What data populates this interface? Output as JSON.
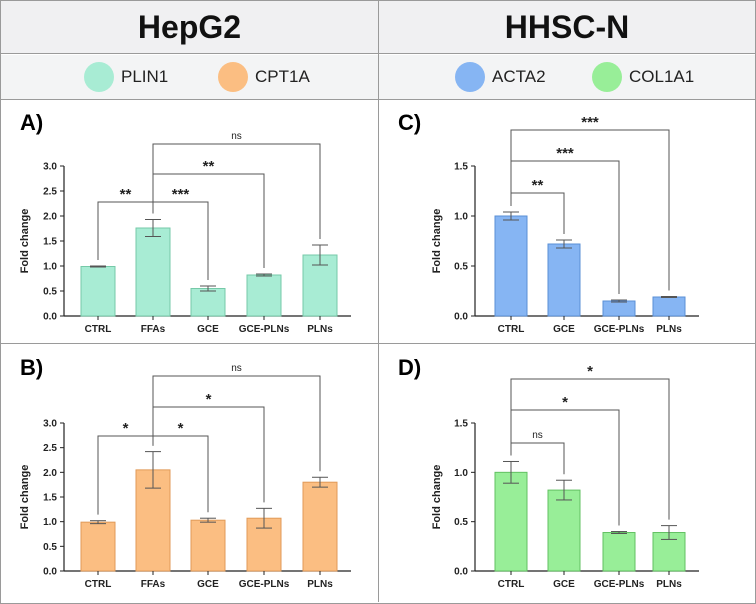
{
  "headers": {
    "left": "HepG2",
    "right": "HHSC-N"
  },
  "legend_left": [
    {
      "label": "PLIN1",
      "color": "#a8ecd4"
    },
    {
      "label": "CPT1A",
      "color": "#fbbe82"
    }
  ],
  "legend_right": [
    {
      "label": "ACTA2",
      "color": "#86b5f3"
    },
    {
      "label": "COL1A1",
      "color": "#98ee98"
    }
  ],
  "chart_data": [
    {
      "id": "A",
      "panel_label": "A)",
      "type": "bar",
      "bar_color": "#a8ecd4",
      "bar_stroke": "#76c9a8",
      "categories": [
        "CTRL",
        "FFAs",
        "GCE",
        "GCE-PLNs",
        "PLNs"
      ],
      "values": [
        0.99,
        1.76,
        0.55,
        0.82,
        1.22
      ],
      "errors": [
        0.01,
        0.17,
        0.05,
        0.02,
        0.2
      ],
      "ylabel": "Fold change",
      "ylim": [
        0,
        3.0
      ],
      "yticks": [
        "0.0",
        "0.5",
        "1.0",
        "1.5",
        "2.0",
        "2.5",
        "3.0"
      ],
      "brackets": [
        {
          "from": 0,
          "to": 1,
          "label": "**"
        },
        {
          "from": 1,
          "to": 2,
          "label": "***"
        },
        {
          "from": 1,
          "to": 3,
          "label": "**"
        },
        {
          "from": 1,
          "to": 4,
          "label": "ns"
        }
      ]
    },
    {
      "id": "B",
      "panel_label": "B)",
      "type": "bar",
      "bar_color": "#fbbe82",
      "bar_stroke": "#e09a58",
      "categories": [
        "CTRL",
        "FFAs",
        "GCE",
        "GCE-PLNs",
        "PLNs"
      ],
      "values": [
        0.99,
        2.05,
        1.03,
        1.07,
        1.8
      ],
      "errors": [
        0.03,
        0.37,
        0.04,
        0.2,
        0.1
      ],
      "ylabel": "Fold change",
      "ylim": [
        0,
        3.0
      ],
      "yticks": [
        "0.0",
        "0.5",
        "1.0",
        "1.5",
        "2.0",
        "2.5",
        "3.0"
      ],
      "brackets": [
        {
          "from": 0,
          "to": 1,
          "label": "*"
        },
        {
          "from": 1,
          "to": 2,
          "label": "*"
        },
        {
          "from": 1,
          "to": 3,
          "label": "*"
        },
        {
          "from": 1,
          "to": 4,
          "label": "ns"
        }
      ]
    },
    {
      "id": "C",
      "panel_label": "C)",
      "type": "bar",
      "bar_color": "#86b5f3",
      "bar_stroke": "#5a8fd6",
      "categories": [
        "CTRL",
        "GCE",
        "GCE-PLNs",
        "PLNs"
      ],
      "values": [
        1.0,
        0.72,
        0.15,
        0.19
      ],
      "errors": [
        0.04,
        0.04,
        0.01,
        0.005
      ],
      "ylabel": "Fold change",
      "ylim": [
        0,
        1.5
      ],
      "yticks": [
        "0.0",
        "0.5",
        "1.0",
        "1.5"
      ],
      "brackets": [
        {
          "from": 0,
          "to": 1,
          "label": "**"
        },
        {
          "from": 0,
          "to": 2,
          "label": "***"
        },
        {
          "from": 0,
          "to": 3,
          "label": "***"
        }
      ]
    },
    {
      "id": "D",
      "panel_label": "D)",
      "type": "bar",
      "bar_color": "#98ee98",
      "bar_stroke": "#62c062",
      "categories": [
        "CTRL",
        "GCE",
        "GCE-PLNs",
        "PLNs"
      ],
      "values": [
        1.0,
        0.82,
        0.39,
        0.39
      ],
      "errors": [
        0.11,
        0.1,
        0.01,
        0.07
      ],
      "ylabel": "Fold change",
      "ylim": [
        0,
        1.5
      ],
      "yticks": [
        "0.0",
        "0.5",
        "1.0",
        "1.5"
      ],
      "brackets": [
        {
          "from": 0,
          "to": 1,
          "label": "ns"
        },
        {
          "from": 0,
          "to": 2,
          "label": "*"
        },
        {
          "from": 0,
          "to": 3,
          "label": "*"
        }
      ]
    }
  ]
}
